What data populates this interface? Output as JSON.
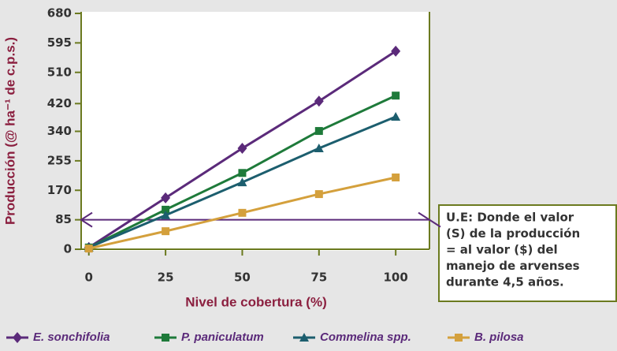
{
  "chart_data": {
    "type": "line",
    "x_label": "Nivel de cobertura (%)",
    "y_label": "Producción (@ ha⁻¹ de c.p.s.)",
    "x": [
      0,
      25,
      50,
      75,
      100
    ],
    "series": [
      {
        "name": "E. sonchifolia",
        "color": "#5b2a7a",
        "marker": "diamond",
        "values": [
          5,
          148,
          291,
          427,
          571
        ]
      },
      {
        "name": "P. paniculatum",
        "color": "#1e7a3a",
        "marker": "square",
        "values": [
          5,
          114,
          220,
          341,
          443
        ]
      },
      {
        "name": "Commelina spp.",
        "color": "#1c5e6e",
        "marker": "triangle",
        "values": [
          5,
          98,
          193,
          291,
          382
        ]
      },
      {
        "name": "B. pilosa",
        "color": "#d4a03c",
        "marker": "square",
        "values": [
          2,
          52,
          105,
          159,
          207
        ]
      }
    ],
    "xlim": [
      -2.5,
      111
    ],
    "xticks": [
      0,
      25,
      50,
      75,
      100
    ],
    "ylim": [
      0,
      680
    ],
    "yticks": [
      0,
      85,
      170,
      255,
      340,
      420,
      510,
      595,
      680
    ],
    "reference_line": {
      "value": 85,
      "color": "#5b2a7a"
    },
    "annotation": [
      "U.E: Donde el valor",
      "(S) de la producción",
      "= al valor ($) del",
      "manejo de arvenses",
      "durante 4,5 años."
    ],
    "axis_color": "#6b7a1f",
    "legend": "bottom"
  }
}
